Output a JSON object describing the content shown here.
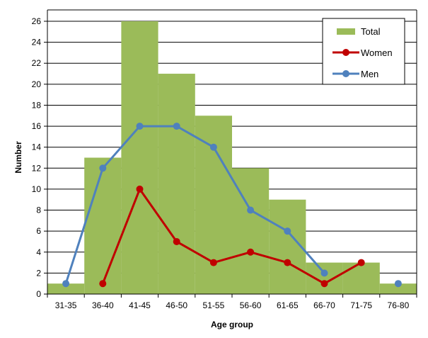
{
  "chart_data": {
    "type": "bar",
    "categories": [
      "31-35",
      "36-40",
      "41-45",
      "46-50",
      "51-55",
      "56-60",
      "61-65",
      "66-70",
      "71-75",
      "76-80"
    ],
    "series": [
      {
        "name": "Total",
        "type": "bar",
        "color": "#9BBB59",
        "values": [
          1,
          13,
          26,
          21,
          17,
          12,
          9,
          3,
          3,
          1
        ]
      },
      {
        "name": "Women",
        "type": "line",
        "color": "#C00000",
        "values": [
          null,
          1,
          10,
          5,
          3,
          4,
          3,
          1,
          3,
          null
        ]
      },
      {
        "name": "Men",
        "type": "line",
        "color": "#4F81BD",
        "values": [
          1,
          12,
          16,
          16,
          14,
          8,
          6,
          2,
          null,
          1
        ]
      }
    ],
    "xlabel": "Age group",
    "ylabel": "Number",
    "ylim": [
      0,
      26
    ],
    "yticks": [
      0,
      2,
      4,
      6,
      8,
      10,
      12,
      14,
      16,
      18,
      20,
      22,
      24,
      26
    ],
    "grid": true,
    "legend_position": "top-right"
  }
}
